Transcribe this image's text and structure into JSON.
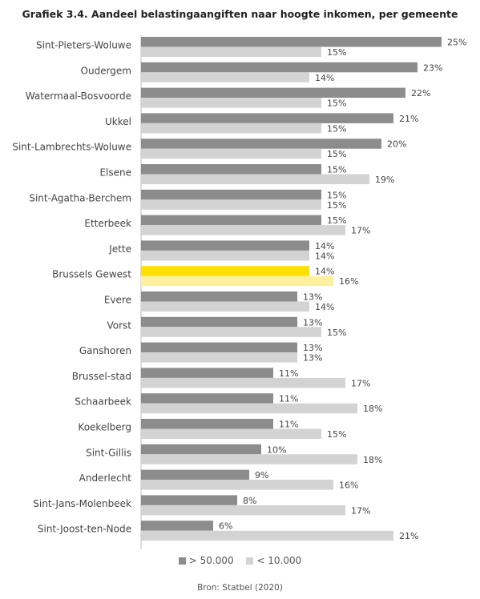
{
  "chart_data": {
    "type": "bar",
    "orientation": "horizontal",
    "title": "Grafiek 3.4. Aandeel belastingaangiften naar hoogte inkomen, per gemeente",
    "source": "Bron: Statbel (2020)",
    "categories": [
      "Sint-Pieters-Woluwe",
      "Oudergem",
      "Watermaal-Bosvoorde",
      "Ukkel",
      "Sint-Lambrechts-Woluwe",
      "Elsene",
      "Sint-Agatha-Berchem",
      "Etterbeek",
      "Jette",
      "Brussels Gewest",
      "Evere",
      "Vorst",
      "Ganshoren",
      "Brussel-stad",
      "Schaarbeek",
      "Koekelberg",
      "Sint-Gillis",
      "Anderlecht",
      "Sint-Jans-Molenbeek",
      "Sint-Joost-ten-Node"
    ],
    "series": [
      {
        "name": "> 50.000",
        "color": "#8c8c8c",
        "values": [
          25,
          23,
          22,
          21,
          20,
          15,
          15,
          15,
          14,
          14,
          13,
          13,
          13,
          11,
          11,
          11,
          10,
          9,
          8,
          6
        ]
      },
      {
        "name": "< 10.000",
        "color": "#d3d3d3",
        "values": [
          15,
          14,
          15,
          15,
          15,
          19,
          15,
          17,
          14,
          16,
          14,
          15,
          13,
          17,
          18,
          15,
          18,
          16,
          17,
          21
        ]
      }
    ],
    "value_suffix": "%",
    "highlight": {
      "category": "Brussels Gewest",
      "colors": [
        "#ffe000",
        "#fff09e"
      ]
    },
    "xlim": [
      0,
      25
    ],
    "grid": false,
    "legend_position": "bottom"
  }
}
